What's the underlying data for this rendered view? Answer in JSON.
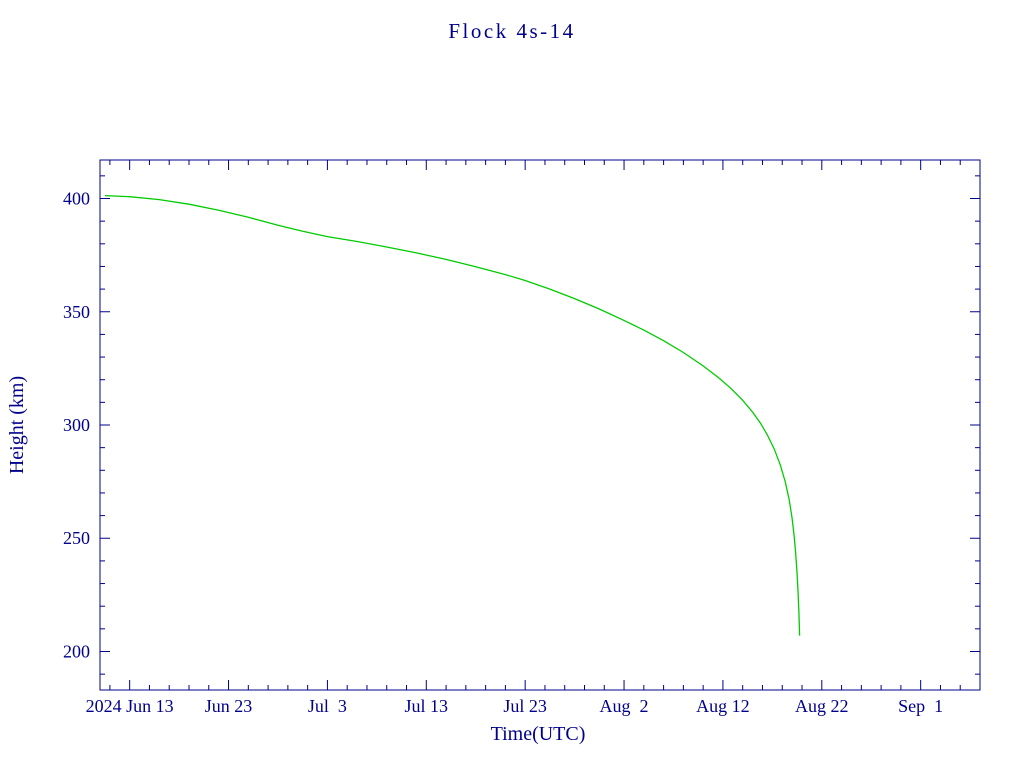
{
  "page": {
    "background": "#ffffff"
  },
  "colors": {
    "axis": "#00008B",
    "text": "#00008B",
    "series": "#00CC00"
  },
  "chart_data": {
    "type": "line",
    "title": "Flock 4s-14",
    "xlabel": "Time(UTC)",
    "ylabel": "Height (km)",
    "grid": false,
    "legend": "none",
    "x_unit": "days (0 = 2024 Jun 10, per tick labels)",
    "xlim": [
      0,
      89
    ],
    "ylim": [
      183,
      417
    ],
    "x_ticks": [
      {
        "value": 3,
        "label": "2024 Jun 13"
      },
      {
        "value": 13,
        "label": "Jun 23"
      },
      {
        "value": 23,
        "label": "Jul  3"
      },
      {
        "value": 33,
        "label": "Jul 13"
      },
      {
        "value": 43,
        "label": "Jul 23"
      },
      {
        "value": 53,
        "label": "Aug  2"
      },
      {
        "value": 63,
        "label": "Aug 12"
      },
      {
        "value": 73,
        "label": "Aug 22"
      },
      {
        "value": 83,
        "label": "Sep  1"
      }
    ],
    "y_ticks": [
      {
        "value": 200,
        "label": "200"
      },
      {
        "value": 250,
        "label": "250"
      },
      {
        "value": 300,
        "label": "300"
      },
      {
        "value": 350,
        "label": "350"
      },
      {
        "value": 400,
        "label": "400"
      }
    ],
    "x_minor": {
      "start": 1,
      "step": 2,
      "length": 5
    },
    "y_minor": {
      "start": 190,
      "step": 10,
      "length": 5
    },
    "tick_major_length": 10,
    "series": [
      {
        "name": "Flock 4s-14 height",
        "color": "#00CC00",
        "points": [
          [
            0.5,
            401.3
          ],
          [
            3,
            400.8
          ],
          [
            6,
            399.5
          ],
          [
            9,
            397.5
          ],
          [
            12,
            394.8
          ],
          [
            15,
            391.7
          ],
          [
            18,
            388.2
          ],
          [
            20.5,
            385.5
          ],
          [
            23,
            383.2
          ],
          [
            26,
            381.0
          ],
          [
            29,
            378.6
          ],
          [
            32,
            376.0
          ],
          [
            35,
            373.1
          ],
          [
            38,
            369.9
          ],
          [
            41,
            366.4
          ],
          [
            43,
            363.8
          ],
          [
            45.5,
            360.0
          ],
          [
            48,
            355.8
          ],
          [
            50.5,
            351.2
          ],
          [
            53,
            346.2
          ],
          [
            55,
            341.9
          ],
          [
            57,
            337.2
          ],
          [
            59,
            332.0
          ],
          [
            61,
            326.1
          ],
          [
            62.5,
            321.1
          ],
          [
            63.8,
            316.2
          ],
          [
            65,
            310.9
          ],
          [
            66,
            305.7
          ],
          [
            66.8,
            300.8
          ],
          [
            67.5,
            295.6
          ],
          [
            68.2,
            289.3
          ],
          [
            68.8,
            282.4
          ],
          [
            69.3,
            275.0
          ],
          [
            69.7,
            267.0
          ],
          [
            70.0,
            258.8
          ],
          [
            70.2,
            251.3
          ],
          [
            70.35,
            243.8
          ],
          [
            70.5,
            234.3
          ],
          [
            70.6,
            225.8
          ],
          [
            70.68,
            217.3
          ],
          [
            70.73,
            210.3
          ],
          [
            70.75,
            207.0
          ]
        ]
      }
    ]
  }
}
